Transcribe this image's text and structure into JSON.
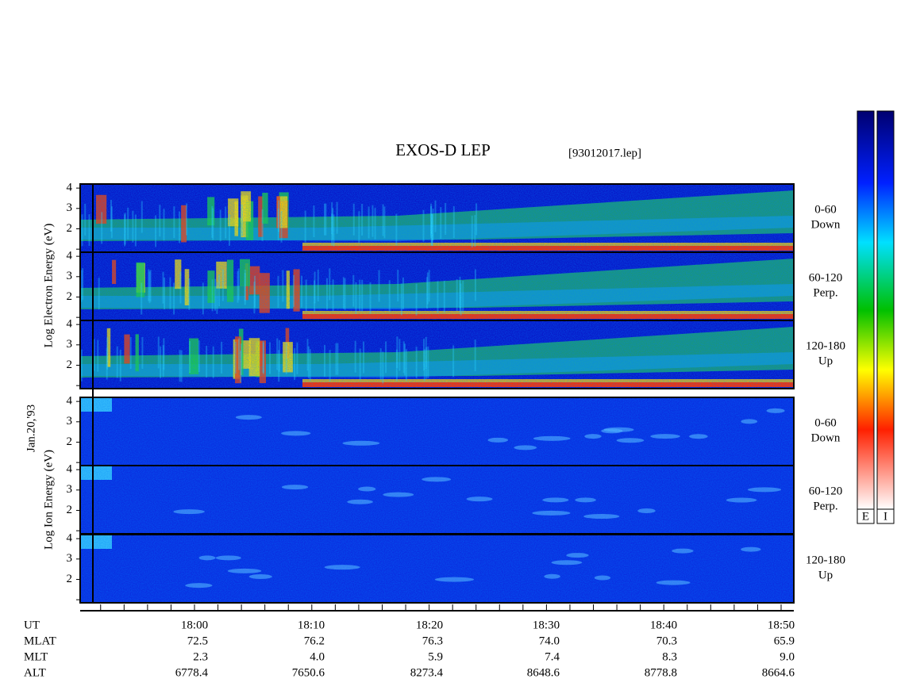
{
  "header": {
    "title": "EXOS-D LEP",
    "file": "[93012017.lep]"
  },
  "date": "Jan.20,'93",
  "electron_axis_label": "Log Electron Energy (eV)",
  "ion_axis_label": "Log Ion Energy (eV)",
  "energy_axis": {
    "ylim": [
      0.85,
      4.2
    ],
    "yticks": [
      2,
      3,
      4
    ]
  },
  "panels": [
    {
      "species": "electron",
      "angle": "0-60",
      "direction": "Down"
    },
    {
      "species": "electron",
      "angle": "60-120",
      "direction": "Perp."
    },
    {
      "species": "electron",
      "angle": "120-180",
      "direction": "Up"
    },
    {
      "species": "ion",
      "angle": "0-60",
      "direction": "Down"
    },
    {
      "species": "ion",
      "angle": "60-120",
      "direction": "Perp."
    },
    {
      "species": "ion",
      "angle": "120-180",
      "direction": "Up"
    }
  ],
  "colorbar": {
    "labels": [
      "E",
      "I"
    ]
  },
  "orbit": {
    "rows": [
      {
        "name": "UT",
        "values": [
          "18:00",
          "18:10",
          "18:20",
          "18:30",
          "18:40",
          "18:50"
        ]
      },
      {
        "name": "MLAT",
        "values": [
          "72.5",
          "76.2",
          "76.3",
          "74.0",
          "70.3",
          "65.9"
        ]
      },
      {
        "name": "MLT",
        "values": [
          "2.3",
          "4.0",
          "5.9",
          "7.4",
          "8.3",
          "9.0"
        ]
      },
      {
        "name": "ALT",
        "values": [
          "6778.4",
          "7650.6",
          "8273.4",
          "8648.6",
          "8778.8",
          "8664.6"
        ]
      }
    ]
  }
}
